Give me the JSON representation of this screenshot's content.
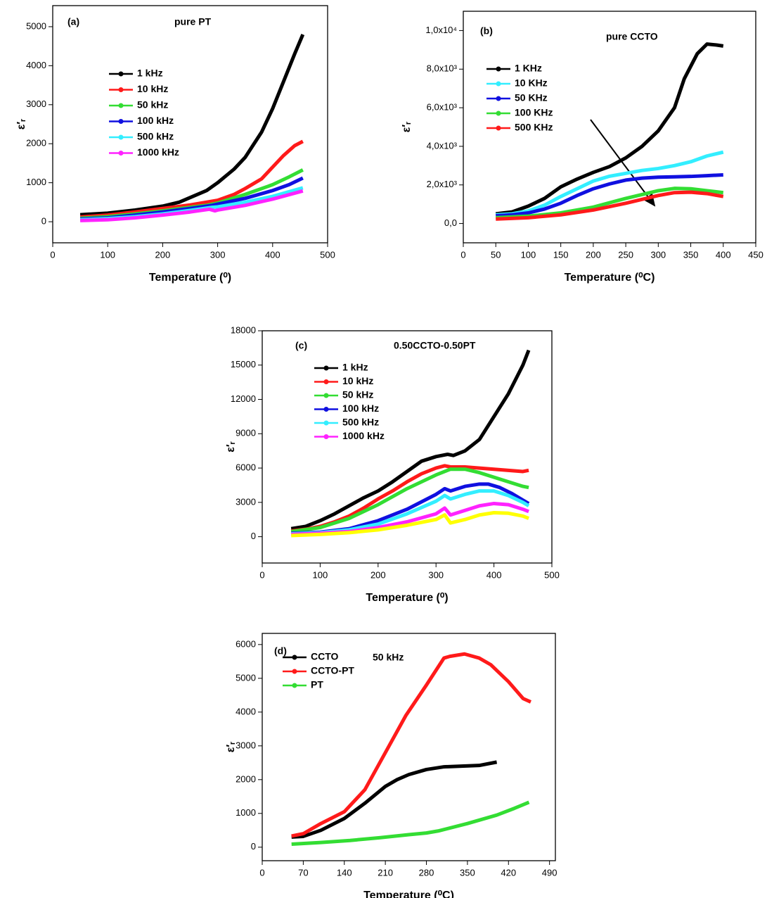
{
  "chart_data": [
    {
      "type": "line",
      "label": "(a)",
      "title": "pure PT",
      "x_label": "Temperature (⁰)",
      "y_label": "ε′ᵣ",
      "xlim": [
        0,
        500
      ],
      "xticks": [
        0,
        100,
        200,
        300,
        400,
        500
      ],
      "ylim": [
        -540,
        5540
      ],
      "yticks": [
        0,
        1000,
        2000,
        3000,
        4000,
        5000
      ],
      "series": [
        {
          "name": "1 kHz",
          "color": "#000000",
          "x": [
            50,
            100,
            150,
            200,
            230,
            250,
            280,
            300,
            330,
            350,
            380,
            400,
            420,
            440,
            455
          ],
          "values": [
            180,
            220,
            300,
            400,
            500,
            620,
            800,
            1000,
            1350,
            1650,
            2300,
            2900,
            3600,
            4300,
            4800
          ]
        },
        {
          "name": "10 kHz",
          "color": "#ff1a1a",
          "x": [
            50,
            100,
            150,
            200,
            250,
            300,
            330,
            350,
            380,
            400,
            420,
            440,
            455
          ],
          "values": [
            120,
            170,
            250,
            340,
            430,
            550,
            700,
            850,
            1100,
            1400,
            1700,
            1950,
            2060
          ]
        },
        {
          "name": "50 kHz",
          "color": "#33dd33",
          "x": [
            50,
            100,
            150,
            200,
            250,
            280,
            300,
            350,
            400,
            430,
            455
          ],
          "values": [
            90,
            130,
            200,
            280,
            370,
            420,
            480,
            700,
            950,
            1150,
            1330
          ]
        },
        {
          "name": "100 kHz",
          "color": "#1010e0",
          "x": [
            50,
            100,
            150,
            200,
            250,
            290,
            300,
            350,
            400,
            430,
            455
          ],
          "values": [
            70,
            100,
            170,
            250,
            340,
            420,
            450,
            600,
            800,
            950,
            1120
          ]
        },
        {
          "name": "500 kHz",
          "color": "#33eeff",
          "x": [
            50,
            100,
            150,
            200,
            250,
            290,
            300,
            350,
            400,
            455
          ],
          "values": [
            50,
            80,
            130,
            200,
            290,
            370,
            380,
            500,
            650,
            870
          ]
        },
        {
          "name": "1000 kHz",
          "color": "#ff22ff",
          "x": [
            50,
            100,
            150,
            200,
            250,
            285,
            295,
            300,
            350,
            400,
            455
          ],
          "values": [
            30,
            50,
            100,
            170,
            250,
            320,
            280,
            300,
            420,
            580,
            790
          ]
        }
      ]
    },
    {
      "type": "line",
      "label": "(b)",
      "title": "pure CCTO",
      "x_label": "Temperature (⁰C)",
      "y_label": "ε′ᵣ",
      "xlim": [
        0,
        450
      ],
      "xticks": [
        0,
        50,
        100,
        150,
        200,
        250,
        300,
        350,
        400,
        450
      ],
      "ylim": [
        -1000,
        11000
      ],
      "yticks": [
        {
          "value": 0,
          "label": "0,0"
        },
        {
          "value": 2000,
          "label": "2,0x10³"
        },
        {
          "value": 4000,
          "label": "4,0x10³"
        },
        {
          "value": 6000,
          "label": "6,0x10³"
        },
        {
          "value": 8000,
          "label": "8,0x10³"
        },
        {
          "value": 10000,
          "label": "1,0x10⁴"
        }
      ],
      "series": [
        {
          "name": "1 KHz",
          "color": "#000000",
          "x": [
            50,
            75,
            100,
            125,
            150,
            175,
            200,
            225,
            250,
            275,
            300,
            325,
            340,
            360,
            375,
            390,
            400
          ],
          "values": [
            500,
            600,
            900,
            1300,
            1900,
            2300,
            2650,
            2950,
            3400,
            4000,
            4800,
            6000,
            7500,
            8800,
            9300,
            9250,
            9200
          ]
        },
        {
          "name": "10 KHz",
          "color": "#33eeff",
          "x": [
            50,
            75,
            100,
            125,
            150,
            175,
            200,
            225,
            250,
            275,
            300,
            325,
            350,
            375,
            400
          ],
          "values": [
            450,
            500,
            650,
            950,
            1400,
            1800,
            2200,
            2450,
            2600,
            2750,
            2850,
            3000,
            3200,
            3500,
            3700
          ]
        },
        {
          "name": "50 KHz",
          "color": "#1010e0",
          "x": [
            50,
            75,
            100,
            125,
            150,
            175,
            200,
            225,
            250,
            275,
            300,
            325,
            350,
            375,
            400
          ],
          "values": [
            400,
            450,
            550,
            750,
            1050,
            1450,
            1800,
            2050,
            2250,
            2350,
            2400,
            2420,
            2440,
            2480,
            2520
          ]
        },
        {
          "name": "100 KHz",
          "color": "#33dd33",
          "x": [
            50,
            100,
            150,
            200,
            250,
            300,
            325,
            350,
            375,
            400
          ],
          "values": [
            300,
            380,
            550,
            850,
            1300,
            1700,
            1820,
            1800,
            1700,
            1600
          ]
        },
        {
          "name": "500 KHz",
          "color": "#ff1a1a",
          "x": [
            50,
            100,
            150,
            200,
            250,
            300,
            325,
            350,
            375,
            400
          ],
          "values": [
            230,
            300,
            450,
            700,
            1050,
            1450,
            1600,
            1620,
            1550,
            1400
          ]
        }
      ]
    },
    {
      "type": "line",
      "label": "(c)",
      "title": "0.50CCTO-0.50PT",
      "x_label": "Temperature (⁰)",
      "y_label": "ε′ᵣ",
      "xlim": [
        0,
        500
      ],
      "xticks": [
        0,
        100,
        200,
        300,
        400,
        500
      ],
      "ylim": [
        -2300,
        18000
      ],
      "yticks": [
        0,
        3000,
        6000,
        9000,
        12000,
        15000,
        18000
      ],
      "series": [
        {
          "name": "1 kHz",
          "color": "#000000",
          "x": [
            50,
            75,
            100,
            125,
            150,
            175,
            200,
            225,
            250,
            275,
            300,
            320,
            330,
            350,
            375,
            400,
            425,
            450,
            460
          ],
          "values": [
            700,
            900,
            1400,
            2000,
            2700,
            3400,
            4000,
            4800,
            5700,
            6600,
            7000,
            7200,
            7100,
            7500,
            8500,
            10500,
            12500,
            15000,
            16300
          ]
        },
        {
          "name": "10 kHz",
          "color": "#ff1a1a",
          "x": [
            50,
            75,
            100,
            125,
            150,
            175,
            200,
            225,
            250,
            275,
            300,
            315,
            325,
            350,
            375,
            400,
            425,
            450,
            460
          ],
          "values": [
            500,
            650,
            900,
            1300,
            1800,
            2500,
            3300,
            4000,
            4800,
            5500,
            6000,
            6200,
            6100,
            6100,
            6000,
            5900,
            5800,
            5700,
            5800
          ]
        },
        {
          "name": "50 kHz",
          "color": "#33dd33",
          "x": [
            50,
            100,
            150,
            200,
            250,
            300,
            325,
            350,
            375,
            400,
            425,
            450,
            460
          ],
          "values": [
            450,
            800,
            1600,
            2800,
            4200,
            5400,
            5900,
            5900,
            5600,
            5200,
            4800,
            4400,
            4300
          ]
        },
        {
          "name": "100 kHz",
          "color": "#1010e0",
          "x": [
            50,
            100,
            150,
            200,
            250,
            300,
            315,
            325,
            350,
            375,
            390,
            410,
            430,
            450,
            460
          ],
          "values": [
            300,
            400,
            700,
            1400,
            2400,
            3700,
            4200,
            4000,
            4400,
            4600,
            4600,
            4300,
            3800,
            3200,
            2900
          ]
        },
        {
          "name": "500 kHz",
          "color": "#33eeff",
          "x": [
            50,
            100,
            150,
            200,
            250,
            300,
            315,
            325,
            350,
            375,
            400,
            425,
            450,
            460
          ],
          "values": [
            250,
            350,
            600,
            1100,
            2000,
            3100,
            3600,
            3300,
            3700,
            4000,
            4000,
            3600,
            3000,
            2700
          ]
        },
        {
          "name": "1000 kHz",
          "color": "#ff22ff",
          "x": [
            50,
            100,
            150,
            200,
            250,
            300,
            315,
            325,
            350,
            375,
            400,
            425,
            450,
            460
          ],
          "values": [
            200,
            300,
            450,
            800,
            1300,
            2000,
            2500,
            1900,
            2300,
            2700,
            2900,
            2800,
            2400,
            2200
          ]
        },
        {
          "color": "#ffff00",
          "x": [
            50,
            100,
            150,
            200,
            250,
            300,
            315,
            325,
            350,
            375,
            400,
            425,
            450,
            460
          ],
          "values": [
            100,
            200,
            350,
            600,
            1000,
            1500,
            1900,
            1200,
            1500,
            1900,
            2100,
            2050,
            1800,
            1600
          ]
        }
      ]
    },
    {
      "type": "line",
      "label": "(d)",
      "title": "50 kHz",
      "x_label": "Temperature (⁰C)",
      "y_label": "ε′ᵣ",
      "xlim": [
        0,
        500
      ],
      "xticks": [
        0,
        70,
        140,
        210,
        280,
        350,
        420,
        490
      ],
      "ylim": [
        -400,
        6330
      ],
      "yticks": [
        0,
        1000,
        2000,
        3000,
        4000,
        5000,
        6000
      ],
      "series": [
        {
          "name": "CCTO",
          "color": "#000000",
          "x": [
            50,
            70,
            100,
            140,
            175,
            210,
            230,
            250,
            280,
            310,
            340,
            370,
            400
          ],
          "values": [
            300,
            320,
            500,
            850,
            1300,
            1800,
            2000,
            2150,
            2300,
            2380,
            2400,
            2420,
            2520
          ]
        },
        {
          "name": "CCTO-PT",
          "color": "#ff1a1a",
          "x": [
            50,
            70,
            100,
            140,
            175,
            210,
            245,
            280,
            310,
            320,
            345,
            370,
            390,
            420,
            445,
            458
          ],
          "values": [
            330,
            400,
            700,
            1050,
            1700,
            2800,
            3900,
            4800,
            5600,
            5650,
            5720,
            5600,
            5400,
            4900,
            4400,
            4300
          ]
        },
        {
          "name": "PT",
          "color": "#33dd33",
          "x": [
            50,
            100,
            150,
            200,
            250,
            280,
            300,
            350,
            400,
            430,
            455
          ],
          "values": [
            90,
            140,
            200,
            280,
            370,
            420,
            480,
            700,
            950,
            1150,
            1330
          ]
        }
      ]
    }
  ]
}
